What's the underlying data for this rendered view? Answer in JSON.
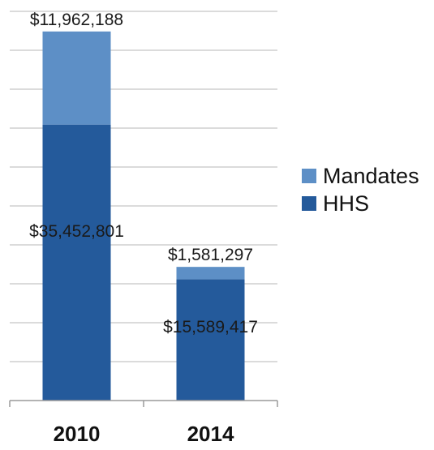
{
  "chart_data": {
    "type": "bar",
    "stacked": true,
    "categories": [
      "2010",
      "2014"
    ],
    "series": [
      {
        "name": "HHS",
        "values": [
          35452801,
          15589417
        ],
        "labels": [
          "$35,452,801",
          "$15,589,417"
        ],
        "color": "#245a9b"
      },
      {
        "name": "Mandates",
        "values": [
          11962188,
          1581297
        ],
        "labels": [
          "$11,962,188",
          "$1,581,297"
        ],
        "color": "#5d8fc6"
      }
    ],
    "ylim": [
      0,
      50000000
    ],
    "grid": true,
    "legend": "right",
    "legend_order": [
      "Mandates",
      "HHS"
    ]
  }
}
